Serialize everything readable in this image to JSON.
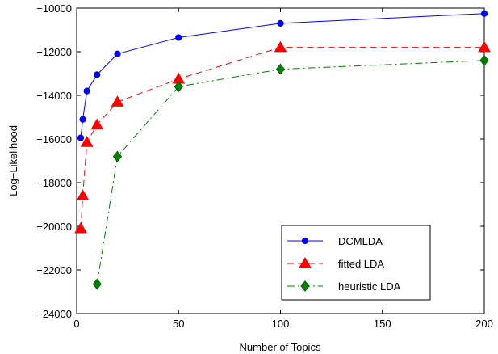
{
  "chart_data": {
    "type": "line",
    "xlabel": "Number of Topics",
    "ylabel": "Log−Likelihood",
    "xlim": [
      0,
      200
    ],
    "ylim": [
      -24000,
      -10000
    ],
    "x_ticks": [
      0,
      50,
      100,
      150,
      200
    ],
    "x_tick_labels": [
      "0",
      "50",
      "100",
      "150",
      "200"
    ],
    "y_ticks": [
      -24000,
      -22000,
      -20000,
      -18000,
      -16000,
      -14000,
      -12000,
      -10000
    ],
    "y_tick_labels": [
      "−24000",
      "−22000",
      "−20000",
      "−18000",
      "−16000",
      "−14000",
      "−12000",
      "−10000"
    ],
    "x_scale": "non-uniform (ticks evenly spaced: 0, 50, 100, 150, 200)",
    "grid": false,
    "legend_position": "bottom-right",
    "series": [
      {
        "name": "DCMLDA",
        "color": "#0000ff",
        "line_style": "solid",
        "marker": "circle",
        "x": [
          2,
          3,
          5,
          10,
          20,
          50,
          100,
          200
        ],
        "y": [
          -15950,
          -15100,
          -13800,
          -13050,
          -12100,
          -11350,
          -10700,
          -10250
        ]
      },
      {
        "name": "fitted LDA",
        "color": "#ff0000",
        "line_style": "dashed",
        "marker": "triangle",
        "x": [
          2,
          3,
          5,
          10,
          20,
          50,
          100,
          200
        ],
        "y": [
          -20100,
          -18600,
          -16150,
          -15350,
          -14300,
          -13250,
          -11800,
          -11800
        ]
      },
      {
        "name": "heuristic LDA",
        "color": "#008000",
        "line_style": "dash-dot",
        "marker": "diamond",
        "x": [
          10,
          20,
          50,
          100,
          200
        ],
        "y": [
          -22650,
          -16800,
          -13600,
          -12800,
          -12400
        ]
      }
    ]
  }
}
